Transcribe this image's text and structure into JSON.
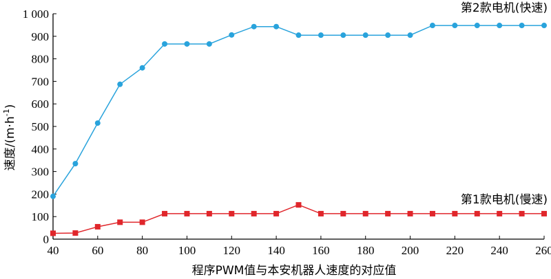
{
  "chart_data": {
    "type": "line",
    "xlabel": "程序PWM值与本安机器人速度的对应值",
    "ylabel": "速度/(m·h",
    "ylabel_sup": "-1",
    "ylabel_close": ")",
    "xlim": [
      40,
      260
    ],
    "ylim": [
      0,
      1000
    ],
    "xticks": [
      40,
      60,
      80,
      100,
      120,
      140,
      160,
      180,
      200,
      220,
      240,
      260
    ],
    "yticks": [
      0,
      100,
      200,
      300,
      400,
      500,
      600,
      700,
      800,
      900,
      1000
    ],
    "ytick_labels": [
      "0",
      "100",
      "200",
      "300",
      "400",
      "500",
      "600",
      "700",
      "800",
      "900",
      "1 000"
    ],
    "grid": false,
    "x": [
      40,
      50,
      60,
      70,
      80,
      90,
      100,
      110,
      120,
      130,
      140,
      150,
      160,
      170,
      180,
      190,
      200,
      210,
      220,
      230,
      240,
      250,
      260
    ],
    "series": [
      {
        "name": "第2款电机(快速)",
        "color": "#29a3dc",
        "marker": "circle",
        "values": [
          190,
          335,
          515,
          687,
          760,
          866,
          866,
          866,
          906,
          943,
          943,
          905,
          905,
          905,
          905,
          905,
          905,
          948,
          948,
          948,
          948,
          948,
          948
        ]
      },
      {
        "name": "第1款电机(慢速)",
        "color": "#e0262b",
        "marker": "square",
        "values": [
          26,
          27,
          55,
          75,
          75,
          113,
          113,
          113,
          113,
          113,
          113,
          152,
          113,
          113,
          113,
          113,
          113,
          113,
          113,
          113,
          113,
          113,
          113
        ]
      }
    ]
  }
}
